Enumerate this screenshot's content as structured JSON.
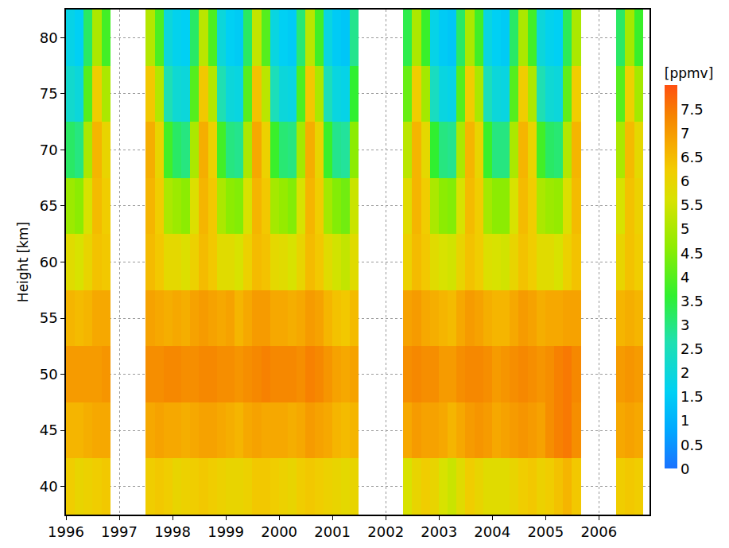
{
  "chart_data": {
    "type": "heatmap",
    "ylabel": "Height [km]",
    "colorbar_title": "[ppmv]",
    "grid": true,
    "xlim": [
      1996,
      2006.95
    ],
    "xticks": [
      1996,
      1997,
      1998,
      1999,
      2000,
      2001,
      2002,
      2003,
      2004,
      2005,
      2006
    ],
    "ylim": [
      37.5,
      82.5
    ],
    "yticks": [
      40,
      45,
      50,
      55,
      60,
      65,
      70,
      75,
      80
    ],
    "zlim": [
      0,
      8
    ],
    "zticks": [
      0,
      0.5,
      1,
      1.5,
      2,
      2.5,
      3,
      3.5,
      4,
      4.5,
      5,
      5.5,
      6,
      6.5,
      7,
      7.5
    ],
    "x": [
      1996.083,
      1996.25,
      1996.417,
      1996.583,
      1996.75,
      1996.917,
      1997.083,
      1997.25,
      1997.417,
      1997.583,
      1997.75,
      1997.917,
      1998.083,
      1998.25,
      1998.417,
      1998.583,
      1998.75,
      1998.917,
      1999.083,
      1999.25,
      1999.417,
      1999.583,
      1999.75,
      1999.917,
      2000.083,
      2000.25,
      2000.417,
      2000.583,
      2000.75,
      2000.917,
      2001.083,
      2001.25,
      2001.417,
      2001.583,
      2001.75,
      2001.917,
      2002.083,
      2002.25,
      2002.417,
      2002.583,
      2002.75,
      2002.917,
      2003.083,
      2003.25,
      2003.417,
      2003.583,
      2003.75,
      2003.917,
      2004.083,
      2004.25,
      2004.417,
      2004.583,
      2004.75,
      2004.917,
      2005.083,
      2005.25,
      2005.417,
      2005.583,
      2005.75,
      2005.917,
      2006.083,
      2006.25,
      2006.417,
      2006.583,
      2006.75,
      2006.917
    ],
    "y": [
      40,
      45,
      50,
      55,
      60,
      65,
      70,
      75,
      80
    ],
    "cells": [
      [
        6.2,
        6.0,
        6.1,
        6.2,
        6.3,
        null,
        null,
        null,
        null,
        6.2,
        6.3,
        6.2,
        6.0,
        6.1,
        6.2,
        6.3,
        6.2,
        6.1,
        6.0,
        6.0,
        6.1,
        6.3,
        6.3,
        6.2,
        6.1,
        6.0,
        6.2,
        6.3,
        6.2,
        6.1,
        6.0,
        5.9,
        6.0,
        null,
        null,
        null,
        null,
        null,
        5.6,
        6.0,
        6.2,
        6.0,
        5.6,
        5.4,
        5.8,
        6.2,
        6.0,
        5.8,
        5.8,
        5.8,
        6.0,
        6.2,
        6.3,
        6.1,
        6.2,
        6.4,
        6.6,
        6.3,
        null,
        null,
        null,
        null,
        6.2,
        6.3,
        6.2,
        null
      ],
      [
        6.6,
        6.6,
        6.7,
        6.8,
        6.8,
        null,
        null,
        null,
        null,
        6.8,
        6.9,
        6.8,
        6.8,
        6.7,
        6.8,
        6.9,
        6.9,
        6.8,
        6.7,
        6.6,
        6.8,
        6.9,
        6.8,
        6.8,
        6.8,
        6.7,
        6.8,
        7.0,
        6.9,
        6.8,
        6.6,
        6.5,
        6.6,
        null,
        null,
        null,
        null,
        null,
        6.8,
        7.0,
        6.9,
        6.9,
        6.8,
        6.6,
        6.8,
        7.0,
        7.1,
        7.0,
        6.8,
        6.9,
        7.0,
        7.1,
        7.0,
        6.9,
        7.2,
        7.4,
        7.5,
        7.2,
        null,
        null,
        null,
        null,
        6.8,
        6.9,
        6.8,
        null
      ],
      [
        7.0,
        7.0,
        7.0,
        7.0,
        7.1,
        null,
        null,
        null,
        null,
        7.2,
        7.2,
        7.3,
        7.3,
        7.2,
        7.2,
        7.3,
        7.3,
        7.2,
        7.2,
        7.1,
        7.2,
        7.3,
        7.4,
        7.3,
        7.3,
        7.3,
        7.2,
        7.4,
        7.3,
        7.1,
        6.9,
        6.8,
        6.9,
        null,
        null,
        null,
        null,
        null,
        7.2,
        7.3,
        7.2,
        7.2,
        7.0,
        7.0,
        7.2,
        7.3,
        7.3,
        7.2,
        7.0,
        7.1,
        7.2,
        7.3,
        7.2,
        7.1,
        7.2,
        7.4,
        7.5,
        7.3,
        null,
        null,
        null,
        null,
        7.0,
        7.1,
        7.0,
        null
      ],
      [
        6.6,
        6.5,
        6.6,
        6.8,
        6.8,
        null,
        null,
        null,
        null,
        6.9,
        6.8,
        6.7,
        6.8,
        6.7,
        6.9,
        7.0,
        6.9,
        6.8,
        6.9,
        6.6,
        6.8,
        7.0,
        7.0,
        6.8,
        6.8,
        6.7,
        6.8,
        7.0,
        6.9,
        6.6,
        6.4,
        6.3,
        6.5,
        null,
        null,
        null,
        null,
        null,
        6.9,
        7.0,
        6.8,
        6.7,
        6.6,
        6.5,
        6.8,
        7.0,
        6.9,
        6.7,
        6.6,
        6.6,
        6.8,
        7.0,
        6.9,
        6.7,
        6.8,
        6.8,
        6.9,
        6.9,
        null,
        null,
        null,
        null,
        6.6,
        6.7,
        6.6,
        null
      ],
      [
        5.8,
        5.6,
        6.0,
        6.4,
        6.3,
        null,
        null,
        null,
        null,
        6.5,
        6.3,
        5.9,
        5.9,
        5.7,
        6.1,
        6.5,
        6.3,
        5.8,
        5.8,
        5.6,
        6.1,
        6.5,
        6.4,
        5.9,
        5.8,
        5.6,
        6.0,
        6.5,
        6.3,
        5.8,
        5.5,
        5.3,
        5.8,
        null,
        null,
        null,
        null,
        null,
        6.1,
        6.5,
        6.3,
        5.8,
        5.6,
        5.5,
        6.0,
        6.4,
        6.2,
        5.7,
        5.6,
        5.5,
        6.0,
        6.4,
        6.2,
        5.8,
        5.8,
        5.6,
        6.1,
        6.4,
        null,
        null,
        null,
        null,
        6.0,
        6.4,
        6.2,
        null
      ],
      [
        4.8,
        4.6,
        5.6,
        6.5,
        6.2,
        null,
        null,
        null,
        null,
        6.6,
        6.2,
        5.0,
        4.8,
        4.6,
        5.7,
        6.6,
        6.3,
        5.0,
        4.6,
        4.5,
        5.6,
        6.6,
        6.3,
        4.9,
        4.7,
        4.5,
        5.6,
        6.6,
        6.2,
        4.9,
        4.5,
        4.3,
        5.4,
        null,
        null,
        null,
        null,
        null,
        5.8,
        6.6,
        6.2,
        5.0,
        4.6,
        4.5,
        5.6,
        6.5,
        6.2,
        4.9,
        4.6,
        4.6,
        5.6,
        6.5,
        6.2,
        5.0,
        4.8,
        4.7,
        5.7,
        6.5,
        null,
        null,
        null,
        null,
        5.6,
        6.4,
        6.1,
        null
      ],
      [
        3.2,
        3.0,
        5.0,
        6.6,
        6.0,
        null,
        null,
        null,
        null,
        6.7,
        6.0,
        3.8,
        3.2,
        3.0,
        5.0,
        6.7,
        6.1,
        3.8,
        3.0,
        2.9,
        5.0,
        6.8,
        6.1,
        3.7,
        3.1,
        3.0,
        4.9,
        6.7,
        6.0,
        3.7,
        2.9,
        2.8,
        4.6,
        null,
        null,
        null,
        null,
        null,
        5.2,
        6.6,
        5.9,
        3.6,
        3.0,
        2.9,
        5.0,
        6.6,
        6.0,
        3.7,
        3.0,
        3.0,
        5.0,
        6.6,
        6.0,
        3.8,
        3.2,
        3.1,
        5.1,
        6.6,
        null,
        null,
        null,
        null,
        5.0,
        6.5,
        5.9,
        null
      ],
      [
        2.2,
        2.0,
        4.0,
        6.2,
        5.0,
        null,
        null,
        null,
        null,
        6.3,
        5.1,
        2.6,
        2.1,
        2.0,
        4.0,
        6.3,
        5.1,
        2.6,
        2.0,
        1.9,
        4.0,
        6.4,
        5.2,
        2.5,
        2.0,
        1.9,
        3.9,
        6.3,
        5.0,
        2.5,
        1.9,
        1.8,
        3.6,
        null,
        null,
        null,
        null,
        null,
        4.2,
        6.2,
        4.9,
        2.4,
        1.9,
        1.8,
        4.0,
        6.2,
        5.0,
        2.5,
        2.0,
        1.9,
        4.0,
        6.2,
        5.0,
        2.6,
        2.1,
        2.0,
        4.1,
        6.2,
        null,
        null,
        null,
        null,
        4.0,
        6.1,
        4.9,
        null
      ],
      [
        1.8,
        1.6,
        3.2,
        5.0,
        3.8,
        null,
        null,
        null,
        null,
        5.1,
        3.9,
        2.0,
        1.7,
        1.6,
        3.2,
        5.2,
        3.9,
        2.0,
        1.6,
        1.5,
        3.2,
        5.3,
        4.0,
        1.9,
        1.6,
        1.5,
        3.1,
        5.2,
        3.8,
        1.9,
        1.5,
        1.4,
        2.9,
        null,
        null,
        null,
        null,
        null,
        3.4,
        5.0,
        3.7,
        1.8,
        1.5,
        1.4,
        3.2,
        5.0,
        3.8,
        1.9,
        1.6,
        1.5,
        3.2,
        5.0,
        3.8,
        2.0,
        1.7,
        1.6,
        3.3,
        5.0,
        null,
        null,
        null,
        null,
        3.2,
        4.9,
        3.7,
        null
      ]
    ]
  }
}
